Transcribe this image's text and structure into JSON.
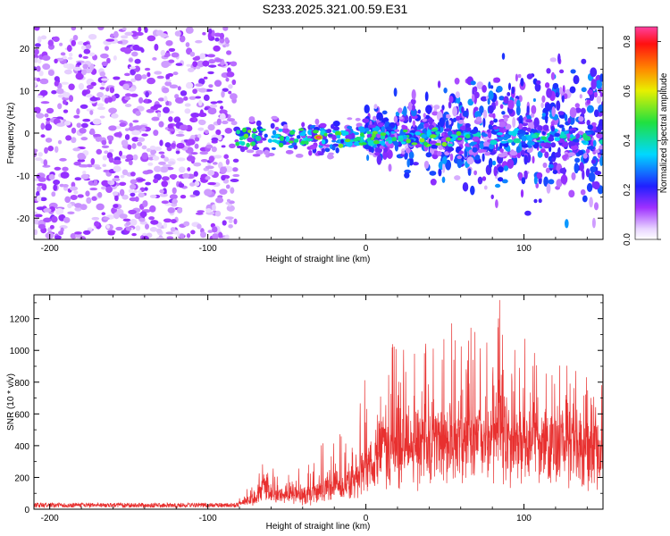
{
  "colors": {
    "snr_line": "#e8302f"
  },
  "chart_data": [
    {
      "type": "heatmap",
      "title": "S233.2025.321.00.59.E31",
      "xlabel": "Height of straight line (km)",
      "ylabel": "Frequency (Hz)",
      "xlim": [
        -210,
        150
      ],
      "ylim": [
        -25,
        25
      ],
      "xticks": [
        -200,
        -100,
        0,
        100
      ],
      "yticks": [
        -20,
        -10,
        0,
        10,
        20
      ],
      "colorbar": {
        "label": "Normalized spectral amplitude",
        "range": [
          0.0,
          0.86
        ],
        "ticks": [
          0.0,
          0.2,
          0.4,
          0.6,
          0.8
        ],
        "colormap": "rainbow (white-magenta-blue-cyan-green-yellow-orange-red-pink)"
      },
      "regions": [
        {
          "name": "noise",
          "x_range": [
            -210,
            -82
          ],
          "freq_range": [
            -25,
            25
          ],
          "amplitude": 0.05
        },
        {
          "name": "signal-band",
          "x_range": [
            -82,
            0
          ],
          "freq_center": -1,
          "freq_halfwidth": 5,
          "amplitude": 0.3,
          "peak": {
            "x": -30,
            "freq": -1,
            "amplitude": 0.85
          }
        },
        {
          "name": "broadening",
          "x_range": [
            0,
            150
          ],
          "freq_center": 0,
          "freq_halfwidth": 12,
          "amplitude": 0.18
        }
      ]
    },
    {
      "type": "line",
      "xlabel": "Height of straight line (km)",
      "ylabel": "SNR (10 * v/v)",
      "xlim": [
        -210,
        150
      ],
      "ylim": [
        0,
        1350
      ],
      "xticks": [
        -200,
        -100,
        0,
        100
      ],
      "yticks": [
        0,
        200,
        400,
        600,
        800,
        1000,
        1200
      ],
      "series": [
        {
          "name": "SNR",
          "x": [
            -210,
            -150,
            -100,
            -82,
            -70,
            -65,
            -55,
            -45,
            -35,
            -25,
            -15,
            -10,
            -5,
            0,
            5,
            10,
            20,
            30,
            40,
            50,
            60,
            70,
            80,
            85,
            90,
            100,
            110,
            120,
            130,
            140,
            150
          ],
          "baseline": [
            25,
            25,
            25,
            25,
            60,
            150,
            60,
            80,
            60,
            110,
            110,
            180,
            170,
            200,
            300,
            380,
            340,
            360,
            390,
            370,
            380,
            390,
            380,
            390,
            360,
            380,
            400,
            400,
            370,
            350,
            350
          ],
          "peaks": [
            40,
            40,
            45,
            45,
            200,
            300,
            250,
            290,
            300,
            450,
            500,
            400,
            600,
            880,
            500,
            1000,
            1080,
            1010,
            1100,
            1240,
            1100,
            1180,
            1080,
            1350,
            1070,
            1160,
            1050,
            1020,
            900,
            1000,
            900
          ]
        }
      ]
    }
  ]
}
